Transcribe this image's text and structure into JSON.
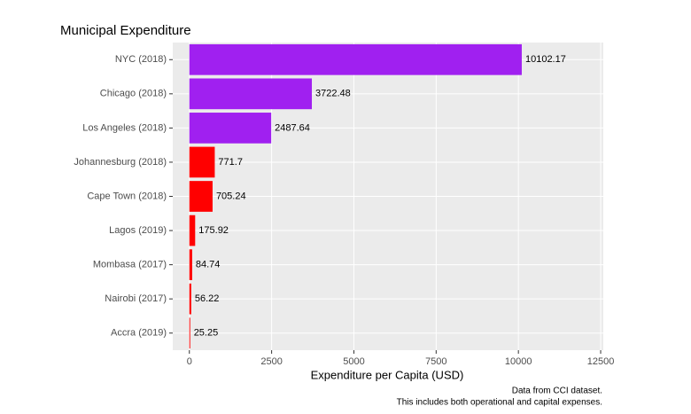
{
  "chart_data": {
    "type": "bar",
    "orientation": "horizontal",
    "title": "Municipal Expenditure",
    "x_label": "Expenditure per Capita (USD)",
    "caption": [
      "Data from CCI dataset.",
      "This includes both operational and capital expenses."
    ],
    "categories": [
      "NYC (2018)",
      "Chicago (2018)",
      "Los Angeles (2018)",
      "Johannesburg (2018)",
      "Cape Town (2018)",
      "Lagos (2019)",
      "Mombasa (2017)",
      "Nairobi (2017)",
      "Accra (2019)"
    ],
    "values": [
      10102.17,
      3722.48,
      2487.64,
      771.7,
      705.24,
      175.92,
      84.74,
      56.22,
      25.25
    ],
    "colors": [
      "#a020f0",
      "#a020f0",
      "#a020f0",
      "#ff0000",
      "#ff0000",
      "#ff0000",
      "#ff0000",
      "#ff0000",
      "#ff0000"
    ],
    "xlim": [
      -505,
      12580
    ],
    "xticks": [
      0,
      2500,
      5000,
      7500,
      10000,
      12500
    ],
    "grid": true
  }
}
